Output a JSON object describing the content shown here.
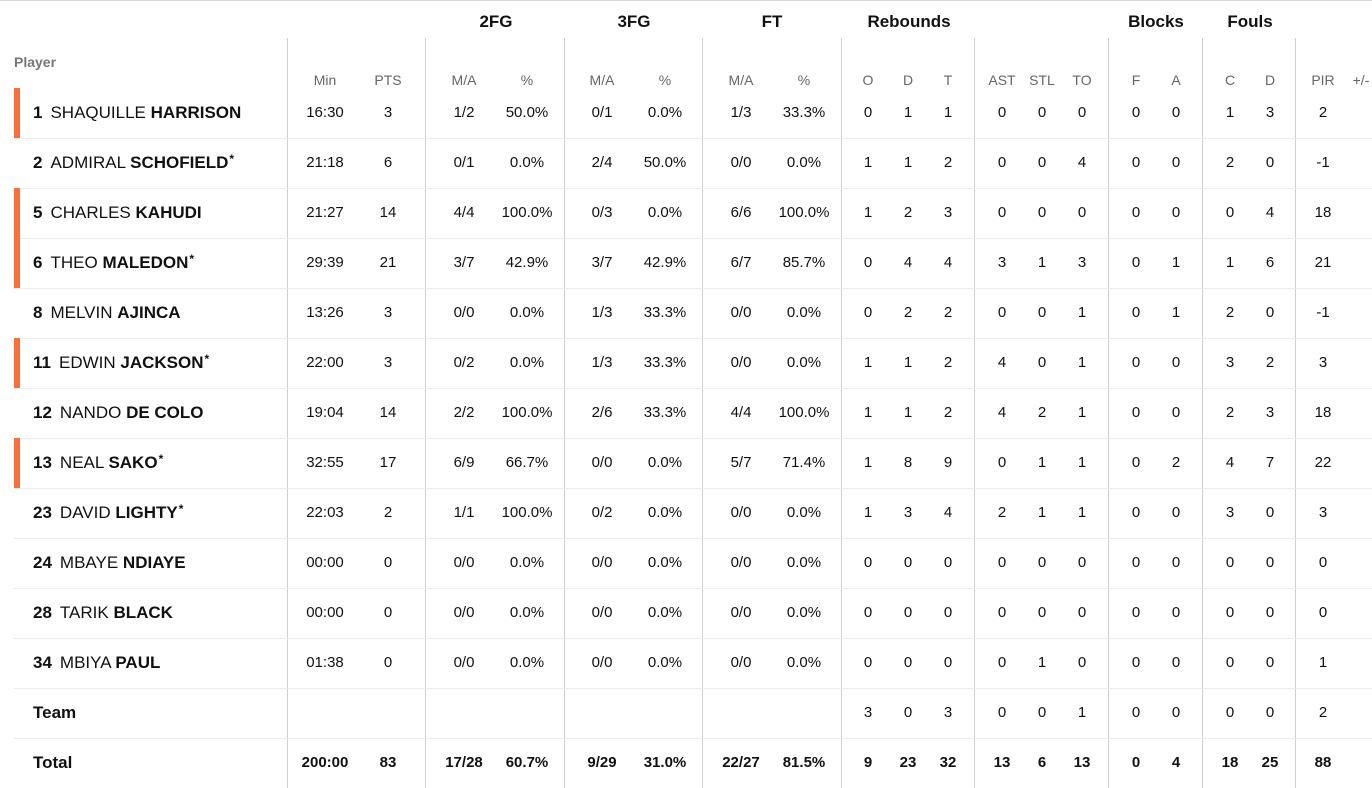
{
  "columns": {
    "player_header": "Player",
    "groups": [
      {
        "label": "2FG"
      },
      {
        "label": "3FG"
      },
      {
        "label": "FT"
      },
      {
        "label": "Rebounds"
      },
      {
        "label": "Blocks"
      },
      {
        "label": "Fouls"
      }
    ],
    "sub": [
      "Min",
      "PTS",
      "M/A",
      "%",
      "M/A",
      "%",
      "M/A",
      "%",
      "O",
      "D",
      "T",
      "AST",
      "STL",
      "TO",
      "F",
      "A",
      "C",
      "D",
      "PIR",
      "+/-"
    ]
  },
  "accent_color": "#fb6f3a",
  "players": [
    {
      "number": "1",
      "first": "SHAQUILLE",
      "last": "HARRISON",
      "starter": true,
      "star": false,
      "stats": [
        "16:30",
        "3",
        "1/2",
        "50.0%",
        "0/1",
        "0.0%",
        "1/3",
        "33.3%",
        "0",
        "1",
        "1",
        "0",
        "0",
        "0",
        "0",
        "0",
        "1",
        "3",
        "2",
        ""
      ]
    },
    {
      "number": "2",
      "first": "ADMIRAL",
      "last": "SCHOFIELD",
      "starter": false,
      "star": true,
      "stats": [
        "21:18",
        "6",
        "0/1",
        "0.0%",
        "2/4",
        "50.0%",
        "0/0",
        "0.0%",
        "1",
        "1",
        "2",
        "0",
        "0",
        "4",
        "0",
        "0",
        "2",
        "0",
        "-1",
        ""
      ]
    },
    {
      "number": "5",
      "first": "CHARLES",
      "last": "KAHUDI",
      "starter": true,
      "star": false,
      "stats": [
        "21:27",
        "14",
        "4/4",
        "100.0%",
        "0/3",
        "0.0%",
        "6/6",
        "100.0%",
        "1",
        "2",
        "3",
        "0",
        "0",
        "0",
        "0",
        "0",
        "0",
        "4",
        "18",
        ""
      ]
    },
    {
      "number": "6",
      "first": "THEO",
      "last": "MALEDON",
      "starter": true,
      "star": true,
      "stats": [
        "29:39",
        "21",
        "3/7",
        "42.9%",
        "3/7",
        "42.9%",
        "6/7",
        "85.7%",
        "0",
        "4",
        "4",
        "3",
        "1",
        "3",
        "0",
        "1",
        "1",
        "6",
        "21",
        ""
      ]
    },
    {
      "number": "8",
      "first": "MELVIN",
      "last": "AJINCA",
      "starter": false,
      "star": false,
      "stats": [
        "13:26",
        "3",
        "0/0",
        "0.0%",
        "1/3",
        "33.3%",
        "0/0",
        "0.0%",
        "0",
        "2",
        "2",
        "0",
        "0",
        "1",
        "0",
        "1",
        "2",
        "0",
        "-1",
        ""
      ]
    },
    {
      "number": "11",
      "first": "EDWIN",
      "last": "JACKSON",
      "starter": true,
      "star": true,
      "stats": [
        "22:00",
        "3",
        "0/2",
        "0.0%",
        "1/3",
        "33.3%",
        "0/0",
        "0.0%",
        "1",
        "1",
        "2",
        "4",
        "0",
        "1",
        "0",
        "0",
        "3",
        "2",
        "3",
        ""
      ]
    },
    {
      "number": "12",
      "first": "NANDO",
      "last": "DE COLO",
      "starter": false,
      "star": false,
      "stats": [
        "19:04",
        "14",
        "2/2",
        "100.0%",
        "2/6",
        "33.3%",
        "4/4",
        "100.0%",
        "1",
        "1",
        "2",
        "4",
        "2",
        "1",
        "0",
        "0",
        "2",
        "3",
        "18",
        ""
      ]
    },
    {
      "number": "13",
      "first": "NEAL",
      "last": "SAKO",
      "starter": true,
      "star": true,
      "stats": [
        "32:55",
        "17",
        "6/9",
        "66.7%",
        "0/0",
        "0.0%",
        "5/7",
        "71.4%",
        "1",
        "8",
        "9",
        "0",
        "1",
        "1",
        "0",
        "2",
        "4",
        "7",
        "22",
        ""
      ]
    },
    {
      "number": "23",
      "first": "DAVID",
      "last": "LIGHTY",
      "starter": false,
      "star": true,
      "stats": [
        "22:03",
        "2",
        "1/1",
        "100.0%",
        "0/2",
        "0.0%",
        "0/0",
        "0.0%",
        "1",
        "3",
        "4",
        "2",
        "1",
        "1",
        "0",
        "0",
        "3",
        "0",
        "3",
        ""
      ]
    },
    {
      "number": "24",
      "first": "MBAYE",
      "last": "NDIAYE",
      "starter": false,
      "star": false,
      "stats": [
        "00:00",
        "0",
        "0/0",
        "0.0%",
        "0/0",
        "0.0%",
        "0/0",
        "0.0%",
        "0",
        "0",
        "0",
        "0",
        "0",
        "0",
        "0",
        "0",
        "0",
        "0",
        "0",
        ""
      ]
    },
    {
      "number": "28",
      "first": "TARIK",
      "last": "BLACK",
      "starter": false,
      "star": false,
      "stats": [
        "00:00",
        "0",
        "0/0",
        "0.0%",
        "0/0",
        "0.0%",
        "0/0",
        "0.0%",
        "0",
        "0",
        "0",
        "0",
        "0",
        "0",
        "0",
        "0",
        "0",
        "0",
        "0",
        ""
      ]
    },
    {
      "number": "34",
      "first": "MBIYA",
      "last": "PAUL",
      "starter": false,
      "star": false,
      "stats": [
        "01:38",
        "0",
        "0/0",
        "0.0%",
        "0/0",
        "0.0%",
        "0/0",
        "0.0%",
        "0",
        "0",
        "0",
        "0",
        "1",
        "0",
        "0",
        "0",
        "0",
        "0",
        "1",
        ""
      ]
    }
  ],
  "team_row": {
    "label": "Team",
    "stats": [
      "",
      "",
      "",
      "",
      "",
      "",
      "",
      "",
      "3",
      "0",
      "3",
      "0",
      "0",
      "1",
      "0",
      "0",
      "0",
      "0",
      "2",
      ""
    ]
  },
  "total_row": {
    "label": "Total",
    "stats": [
      "200:00",
      "83",
      "17/28",
      "60.7%",
      "9/29",
      "31.0%",
      "22/27",
      "81.5%",
      "9",
      "23",
      "32",
      "13",
      "6",
      "13",
      "0",
      "4",
      "18",
      "25",
      "88",
      ""
    ]
  }
}
